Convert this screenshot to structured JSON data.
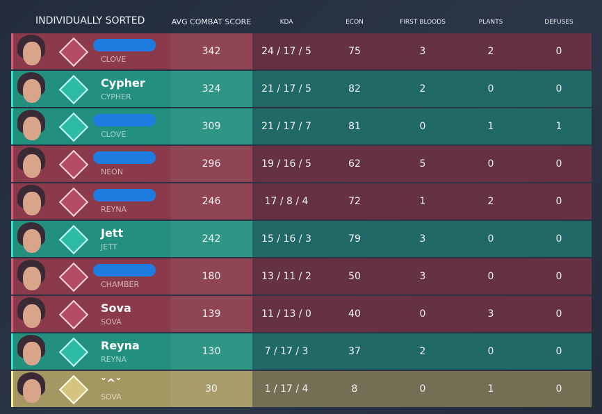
{
  "header": {
    "title": "INDIVIDUALLY SORTED",
    "columns": [
      "AVG COMBAT SCORE",
      "KDA",
      "ECON",
      "FIRST BLOODS",
      "PLANTS",
      "DEFUSES"
    ]
  },
  "rows": [
    {
      "agent": "CLOVE",
      "acs": 342,
      "kda": "24 / 17 / 5",
      "econ": 75,
      "first_bloods": 3,
      "plants": 2,
      "defuses": 0,
      "color": "#8a3a4b"
    },
    {
      "name": "Cypher",
      "agent": "CYPHER",
      "acs": 324,
      "kda": "21 / 17 / 5",
      "econ": 82,
      "first_bloods": 2,
      "plants": 0,
      "defuses": 0,
      "color": "#23907f"
    },
    {
      "agent": "CLOVE",
      "acs": 309,
      "kda": "21 / 17 / 7",
      "econ": 81,
      "first_bloods": 0,
      "plants": 1,
      "defuses": 1,
      "color": "#23907f"
    },
    {
      "agent": "NEON",
      "acs": 296,
      "kda": "19 / 16 / 5",
      "econ": 62,
      "first_bloods": 5,
      "plants": 0,
      "defuses": 0,
      "color": "#8a3a4b"
    },
    {
      "agent": "REYNA",
      "acs": 246,
      "kda": "17 / 8 / 4",
      "econ": 72,
      "first_bloods": 1,
      "plants": 2,
      "defuses": 0,
      "color": "#8a3a4b"
    },
    {
      "name": "Jett",
      "agent": "JETT",
      "acs": 242,
      "kda": "15 / 16 / 3",
      "econ": 79,
      "first_bloods": 3,
      "plants": 0,
      "defuses": 0,
      "color": "#23907f"
    },
    {
      "agent": "CHAMBER",
      "acs": 180,
      "kda": "13 / 11 / 2",
      "econ": 50,
      "first_bloods": 3,
      "plants": 0,
      "defuses": 0,
      "color": "#8a3a4b"
    },
    {
      "name": "Sova",
      "agent": "SOVA",
      "acs": 139,
      "kda": "11 / 13 / 0",
      "econ": 40,
      "first_bloods": 0,
      "plants": 3,
      "defuses": 0,
      "color": "#8a3a4b"
    },
    {
      "name": "Reyna",
      "agent": "REYNA",
      "acs": 130,
      "kda": "7 / 17 / 3",
      "econ": 37,
      "first_bloods": 2,
      "plants": 0,
      "defuses": 0,
      "color": "#23907f"
    },
    {
      "name": "ˇ^ˇ",
      "agent": "SOVA",
      "acs": 30,
      "kda": "1 / 17 / 4",
      "econ": 8,
      "first_bloods": 0,
      "plants": 1,
      "defuses": 0,
      "color": "#a49762"
    }
  ]
}
